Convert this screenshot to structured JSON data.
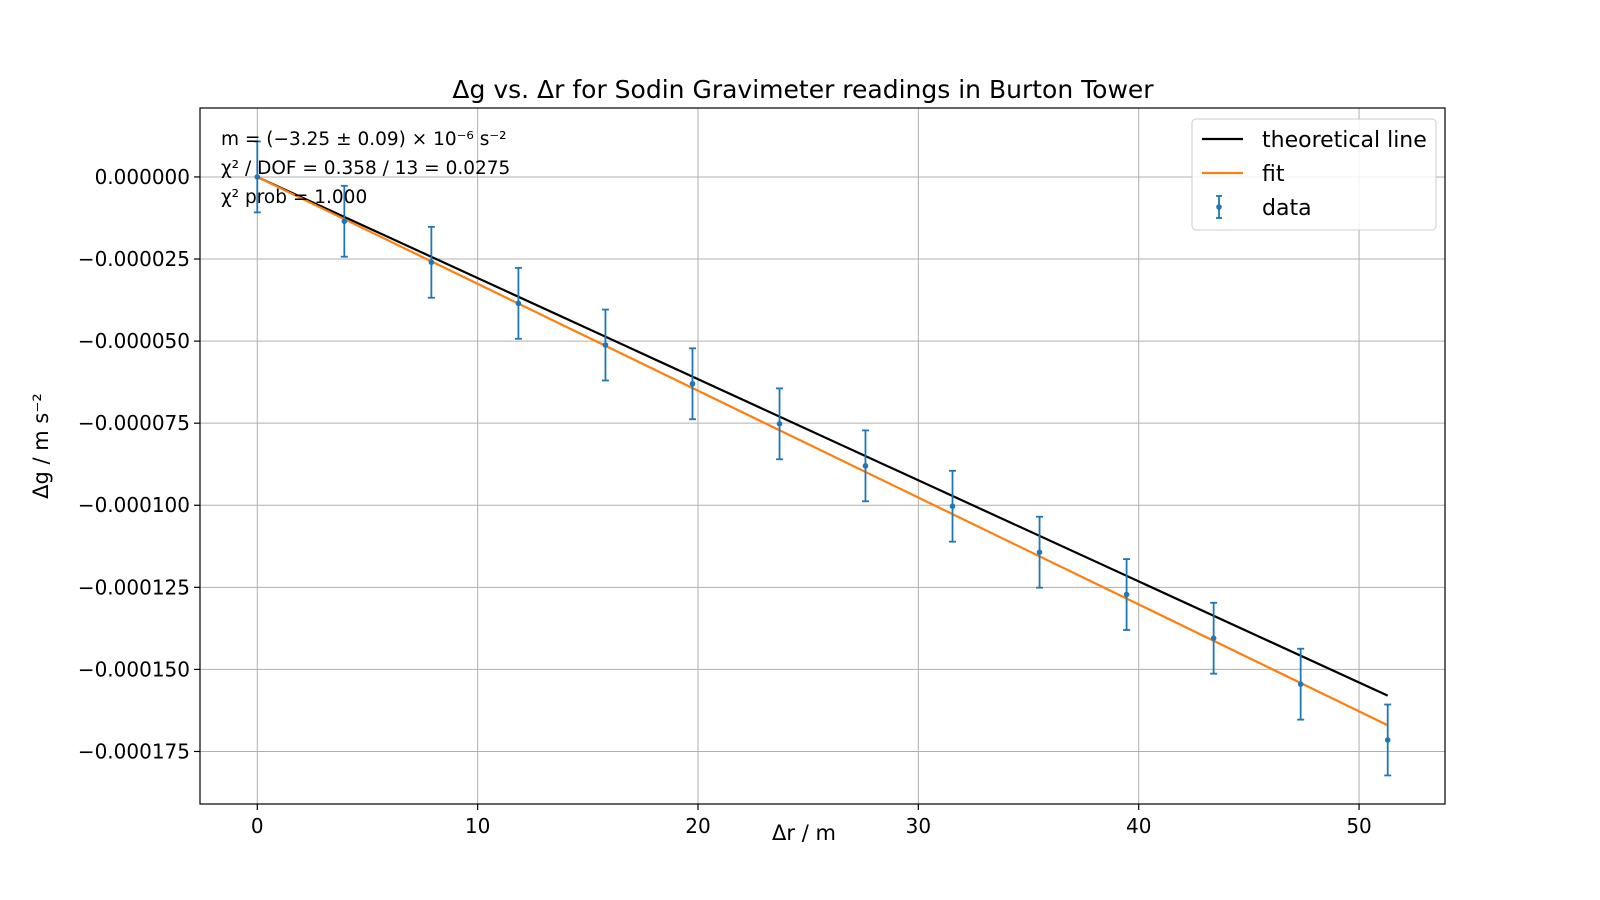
{
  "chart_data": {
    "type": "scatter",
    "title": "Δg vs. Δr for Sodin Gravimeter readings in Burton Tower",
    "xlabel": "Δr / m",
    "ylabel": "Δg / m s⁻²",
    "xlim": [
      -2.6,
      53.9
    ],
    "ylim": [
      -0.000191,
      2.1e-05
    ],
    "xticks": [
      0,
      10,
      20,
      30,
      40,
      50
    ],
    "xtick_labels": [
      "0",
      "10",
      "20",
      "30",
      "40",
      "50"
    ],
    "yticks": [
      0.0,
      -2.5e-05,
      -5e-05,
      -7.5e-05,
      -0.0001,
      -0.000125,
      -0.00015,
      -0.000175
    ],
    "ytick_labels": [
      "0.000000",
      "−0.000025",
      "−0.000050",
      "−0.000075",
      "−0.000100",
      "−0.000125",
      "−0.000150",
      "−0.000175"
    ],
    "grid": true,
    "legend_position": "top-right",
    "legend": [
      "theoretical line",
      "fit",
      "data"
    ],
    "annotations": [
      "m = (−3.25 ± 0.09) × 10⁻⁶ s⁻²",
      "χ² / DOF = 0.358 / 13 = 0.0275",
      "χ² prob = 1.000"
    ],
    "series": [
      {
        "name": "theoretical line",
        "kind": "line",
        "color": "#000000",
        "x": [
          0,
          51.3
        ],
        "y": [
          0.0,
          -0.000158
        ]
      },
      {
        "name": "fit",
        "kind": "line",
        "color": "#ff7f0e",
        "x": [
          0,
          51.3
        ],
        "y": [
          0.0,
          -0.000167
        ]
      },
      {
        "name": "data",
        "kind": "errorbar",
        "color": "#1f77b4",
        "x": [
          0,
          3.95,
          7.9,
          11.85,
          15.8,
          19.75,
          23.7,
          27.6,
          31.55,
          35.5,
          39.45,
          43.4,
          47.35,
          51.3
        ],
        "y": [
          0.0,
          -1.35e-05,
          -2.6e-05,
          -3.85e-05,
          -5.12e-05,
          -6.3e-05,
          -7.52e-05,
          -8.8e-05,
          -0.0001003,
          -0.0001143,
          -0.0001272,
          -0.0001405,
          -0.0001545,
          -0.0001715
        ],
        "yerr": 1.08e-05
      }
    ]
  }
}
